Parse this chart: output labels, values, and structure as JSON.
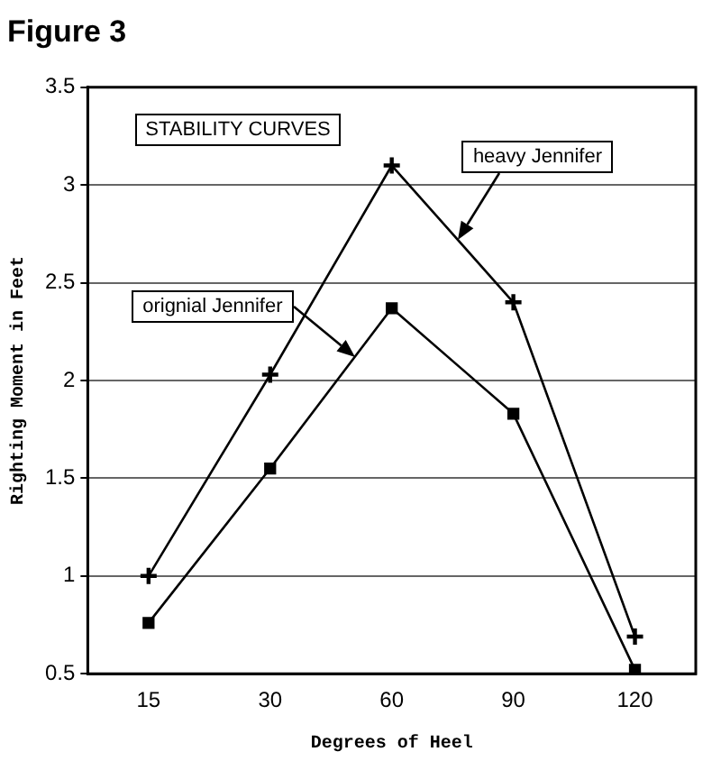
{
  "chart_data": {
    "type": "line",
    "title": "Figure 3",
    "xlabel": "Degrees of Heel",
    "ylabel": "Righting Moment in Feet",
    "annotations": [
      "STABILITY CURVES"
    ],
    "categories": [
      "15",
      "30",
      "60",
      "90",
      "120"
    ],
    "series": [
      {
        "name": "heavy Jennifer",
        "color": "#000000",
        "marker": "cross",
        "values": [
          1.0,
          2.03,
          3.1,
          2.4,
          0.69
        ]
      },
      {
        "name": "orignial Jennifer",
        "color": "#000000",
        "marker": "square",
        "values": [
          0.76,
          1.55,
          2.37,
          1.83,
          0.52
        ]
      }
    ],
    "ylim": [
      0.5,
      3.5
    ],
    "yticks": [
      0.5,
      1,
      1.5,
      2,
      2.5,
      3,
      3.5
    ],
    "grid": "y",
    "legend": false,
    "line_style": "solid"
  }
}
